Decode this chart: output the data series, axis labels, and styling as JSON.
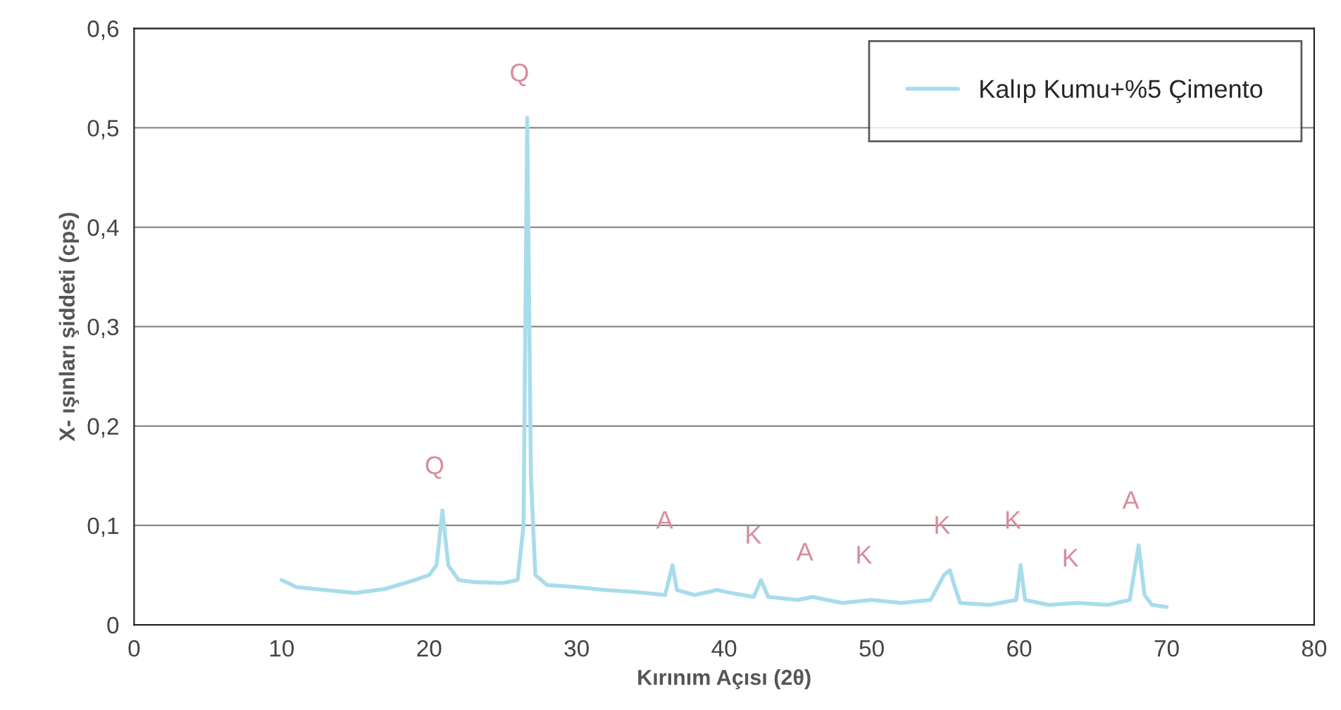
{
  "chart_data": {
    "type": "line",
    "xlabel": "Kırınım Açısı (2θ)",
    "ylabel": "X- ışınları şiddeti (cps)",
    "xlim": [
      0,
      80
    ],
    "xticks": [
      0,
      10,
      20,
      30,
      40,
      50,
      60,
      70,
      80
    ],
    "ylim": [
      0,
      0.6
    ],
    "yticks": [
      {
        "value": 0,
        "label": "0"
      },
      {
        "value": 0.1,
        "label": "0,1"
      },
      {
        "value": 0.2,
        "label": "0,2"
      },
      {
        "value": 0.3,
        "label": "0,3"
      },
      {
        "value": 0.4,
        "label": "0,4"
      },
      {
        "value": 0.5,
        "label": "0,5"
      },
      {
        "value": 0.6,
        "label": "0,6"
      }
    ],
    "grid": "y",
    "legend": "top right",
    "marker": "none",
    "line_style": "solid",
    "series": [
      {
        "name": "Kalıp Kumu+%5 Çimento",
        "color": "#a8dcec",
        "x": [
          10,
          11,
          13,
          15,
          17,
          19,
          20,
          20.5,
          20.9,
          21.3,
          22,
          23,
          25,
          26,
          26.4,
          26.65,
          26.9,
          27.2,
          28,
          30,
          32,
          34,
          36,
          36.5,
          36.8,
          38,
          39.5,
          40.5,
          42,
          42.5,
          43,
          45,
          46,
          48,
          50,
          52,
          54,
          54.9,
          55.3,
          55.6,
          56,
          58,
          59.8,
          60.1,
          60.4,
          62,
          64,
          66,
          67.5,
          68.1,
          68.5,
          69,
          70
        ],
        "values": [
          0.045,
          0.038,
          0.035,
          0.032,
          0.036,
          0.045,
          0.05,
          0.06,
          0.115,
          0.06,
          0.045,
          0.043,
          0.042,
          0.045,
          0.1,
          0.51,
          0.15,
          0.05,
          0.04,
          0.038,
          0.035,
          0.033,
          0.03,
          0.06,
          0.035,
          0.03,
          0.035,
          0.032,
          0.028,
          0.045,
          0.028,
          0.025,
          0.028,
          0.022,
          0.025,
          0.022,
          0.025,
          0.05,
          0.055,
          0.04,
          0.022,
          0.02,
          0.025,
          0.06,
          0.025,
          0.02,
          0.022,
          0.02,
          0.025,
          0.08,
          0.03,
          0.02,
          0.018
        ]
      }
    ],
    "annotations": [
      {
        "text": "Q",
        "x": 26.65,
        "y": 0.51
      },
      {
        "text": "Q",
        "x": 20.9,
        "y": 0.115
      },
      {
        "text": "A",
        "x": 36.5,
        "y": 0.06
      },
      {
        "text": "K",
        "x": 42.5,
        "y": 0.045
      },
      {
        "text": "A",
        "x": 46,
        "y": 0.028
      },
      {
        "text": "K",
        "x": 50,
        "y": 0.025
      },
      {
        "text": "K",
        "x": 55.3,
        "y": 0.055
      },
      {
        "text": "K",
        "x": 60.1,
        "y": 0.06
      },
      {
        "text": "K",
        "x": 64,
        "y": 0.022
      },
      {
        "text": "A",
        "x": 68.1,
        "y": 0.08
      }
    ]
  }
}
